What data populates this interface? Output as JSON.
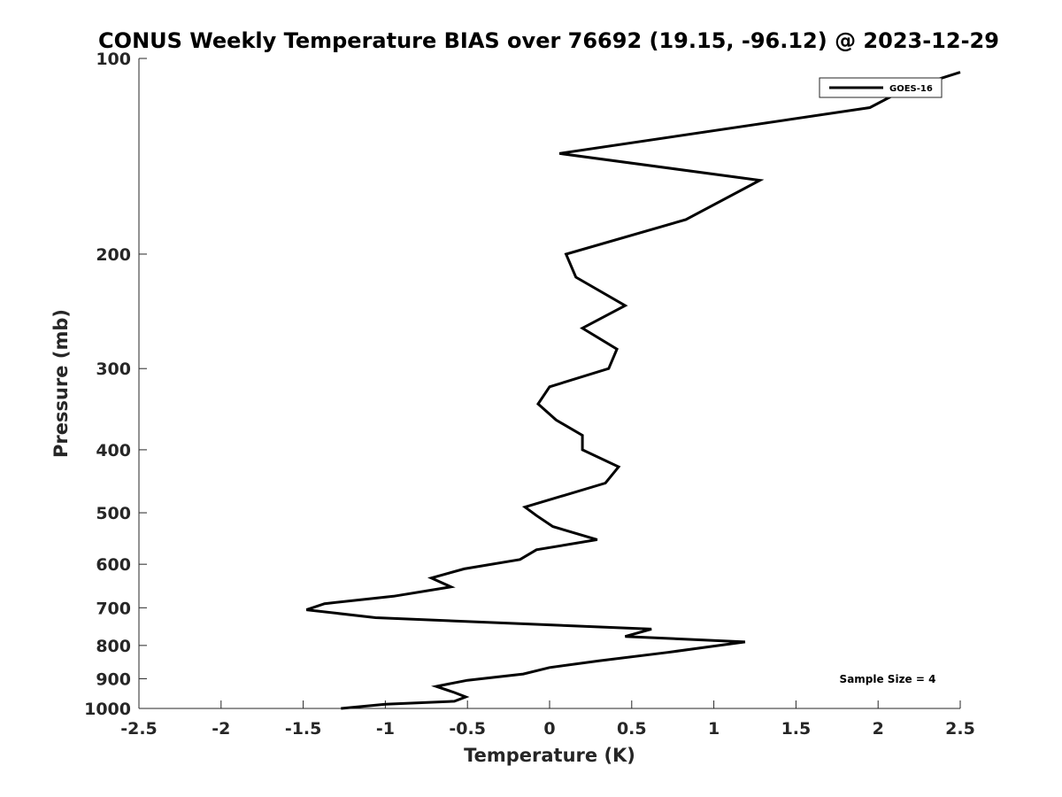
{
  "chart_data": {
    "type": "line",
    "title": "CONUS Weekly Temperature BIAS over 76692 (19.15, -96.12) @ 2023-12-29",
    "xlabel": "Temperature (K)",
    "ylabel": "Pressure (mb)",
    "xlim": [
      -2.5,
      2.5
    ],
    "ylim": [
      100,
      1000
    ],
    "y_scale": "log",
    "y_reversed": true,
    "x_ticks": [
      "-2.5",
      "-2",
      "-1.5",
      "-1",
      "-0.5",
      "0",
      "0.5",
      "1",
      "1.5",
      "2",
      "2.5"
    ],
    "y_ticks": [
      "100",
      "200",
      "300",
      "400",
      "500",
      "600",
      "700",
      "800",
      "900",
      "1000"
    ],
    "grid": false,
    "legend_position": "top-right",
    "annotation": "Sample Size = 4",
    "series": [
      {
        "name": "GOES-16",
        "color": "#000000",
        "points": [
          {
            "x": 2.5,
            "p": 105
          },
          {
            "x": 2.15,
            "p": 112
          },
          {
            "x": 1.95,
            "p": 119
          },
          {
            "x": 0.06,
            "p": 140
          },
          {
            "x": 1.28,
            "p": 154
          },
          {
            "x": 0.83,
            "p": 177
          },
          {
            "x": 0.1,
            "p": 200
          },
          {
            "x": 0.16,
            "p": 217
          },
          {
            "x": 0.46,
            "p": 240
          },
          {
            "x": 0.2,
            "p": 260
          },
          {
            "x": 0.41,
            "p": 280
          },
          {
            "x": 0.36,
            "p": 300
          },
          {
            "x": 0.0,
            "p": 320
          },
          {
            "x": -0.07,
            "p": 340
          },
          {
            "x": 0.04,
            "p": 360
          },
          {
            "x": 0.2,
            "p": 380
          },
          {
            "x": 0.2,
            "p": 400
          },
          {
            "x": 0.42,
            "p": 425
          },
          {
            "x": 0.34,
            "p": 450
          },
          {
            "x": -0.15,
            "p": 490
          },
          {
            "x": -0.08,
            "p": 505
          },
          {
            "x": 0.02,
            "p": 525
          },
          {
            "x": 0.29,
            "p": 550
          },
          {
            "x": -0.08,
            "p": 570
          },
          {
            "x": -0.18,
            "p": 590
          },
          {
            "x": -0.52,
            "p": 610
          },
          {
            "x": -0.72,
            "p": 630
          },
          {
            "x": -0.6,
            "p": 650
          },
          {
            "x": -0.95,
            "p": 672
          },
          {
            "x": -1.37,
            "p": 690
          },
          {
            "x": -1.48,
            "p": 705
          },
          {
            "x": -1.06,
            "p": 725
          },
          {
            "x": 0.62,
            "p": 755
          },
          {
            "x": 0.46,
            "p": 775
          },
          {
            "x": 1.19,
            "p": 790
          },
          {
            "x": 0.98,
            "p": 803
          },
          {
            "x": 0.72,
            "p": 820
          },
          {
            "x": 0.3,
            "p": 845
          },
          {
            "x": 0.0,
            "p": 865
          },
          {
            "x": -0.16,
            "p": 885
          },
          {
            "x": -0.5,
            "p": 905
          },
          {
            "x": -0.69,
            "p": 925
          },
          {
            "x": -0.58,
            "p": 945
          },
          {
            "x": -0.51,
            "p": 960
          },
          {
            "x": -0.58,
            "p": 975
          },
          {
            "x": -1.0,
            "p": 985
          },
          {
            "x": -1.27,
            "p": 1000
          }
        ]
      }
    ]
  }
}
